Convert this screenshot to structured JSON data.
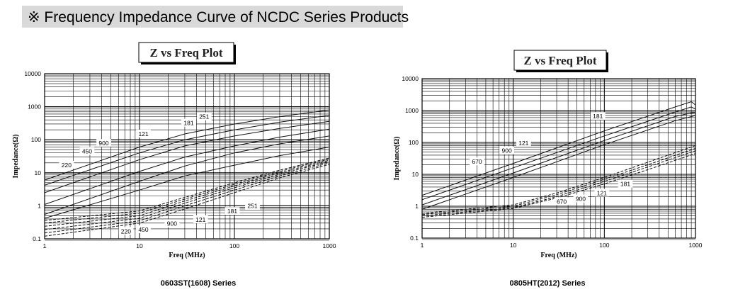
{
  "header": {
    "title": "※ Frequency Impedance Curve of NCDC Series Products"
  },
  "chart_data": [
    {
      "type": "line",
      "title": "Z vs Freq Plot",
      "caption": "0603ST(1608) Series",
      "xlabel": "Freq (MHz)",
      "ylabel": "Impedance(Ω)",
      "xscale": "log",
      "yscale": "log",
      "xlim": [
        1,
        1000
      ],
      "ylim": [
        0.1,
        10000
      ],
      "x_ticks": [
        "1",
        "10",
        "100",
        "1000"
      ],
      "y_ticks": [
        "0.1",
        "1",
        "10",
        "100",
        "1000",
        "10000"
      ],
      "grid": true,
      "series": [
        {
          "name": "251",
          "kind": "Z",
          "points": [
            [
              1,
              6
            ],
            [
              10,
              60
            ],
            [
              30,
              150
            ],
            [
              100,
              300
            ],
            [
              300,
              500
            ],
            [
              1000,
              800
            ]
          ]
        },
        {
          "name": "181",
          "kind": "Z",
          "points": [
            [
              1,
              4.2
            ],
            [
              10,
              40
            ],
            [
              30,
              100
            ],
            [
              100,
              200
            ],
            [
              300,
              340
            ],
            [
              1000,
              550
            ]
          ]
        },
        {
          "name": "121",
          "kind": "Z",
          "points": [
            [
              1,
              2.5
            ],
            [
              10,
              25
            ],
            [
              30,
              65
            ],
            [
              100,
              130
            ],
            [
              300,
              220
            ],
            [
              1000,
              360
            ]
          ]
        },
        {
          "name": "900",
          "kind": "Z",
          "points": [
            [
              1,
              1.1
            ],
            [
              10,
              11
            ],
            [
              30,
              30
            ],
            [
              100,
              65
            ],
            [
              300,
              120
            ],
            [
              1000,
              210
            ]
          ]
        },
        {
          "name": "450",
          "kind": "Z",
          "points": [
            [
              1,
              0.55
            ],
            [
              10,
              5.5
            ],
            [
              30,
              16
            ],
            [
              100,
              40
            ],
            [
              300,
              75
            ],
            [
              1000,
              130
            ]
          ]
        },
        {
          "name": "220",
          "kind": "Z",
          "points": [
            [
              1,
              0.42
            ],
            [
              10,
              3
            ],
            [
              30,
              8
            ],
            [
              100,
              17
            ],
            [
              300,
              33
            ],
            [
              1000,
              60
            ]
          ]
        },
        {
          "name": "220",
          "kind": "R",
          "points": [
            [
              1,
              0.12
            ],
            [
              10,
              0.3
            ],
            [
              30,
              0.8
            ],
            [
              100,
              2.5
            ],
            [
              300,
              7
            ],
            [
              1000,
              18
            ]
          ]
        },
        {
          "name": "450",
          "kind": "R",
          "points": [
            [
              1,
              0.15
            ],
            [
              10,
              0.35
            ],
            [
              30,
              1.0
            ],
            [
              100,
              3.0
            ],
            [
              300,
              8
            ],
            [
              1000,
              20
            ]
          ]
        },
        {
          "name": "900",
          "kind": "R",
          "points": [
            [
              1,
              0.19
            ],
            [
              10,
              0.42
            ],
            [
              30,
              1.2
            ],
            [
              100,
              3.5
            ],
            [
              300,
              9
            ],
            [
              1000,
              22
            ]
          ]
        },
        {
          "name": "121",
          "kind": "R",
          "points": [
            [
              1,
              0.24
            ],
            [
              10,
              0.5
            ],
            [
              30,
              1.4
            ],
            [
              100,
              4.0
            ],
            [
              300,
              10
            ],
            [
              1000,
              24
            ]
          ]
        },
        {
          "name": "181",
          "kind": "R",
          "points": [
            [
              1,
              0.3
            ],
            [
              10,
              0.6
            ],
            [
              30,
              1.6
            ],
            [
              100,
              4.5
            ],
            [
              300,
              11
            ],
            [
              1000,
              26
            ]
          ]
        },
        {
          "name": "251",
          "kind": "R",
          "points": [
            [
              1,
              0.36
            ],
            [
              10,
              0.7
            ],
            [
              30,
              1.8
            ],
            [
              100,
              5.0
            ],
            [
              300,
              12
            ],
            [
              1000,
              28
            ]
          ]
        }
      ],
      "labels": [
        {
          "text": "251",
          "at": [
            48,
            500
          ]
        },
        {
          "text": "181",
          "at": [
            33,
            320
          ]
        },
        {
          "text": "121",
          "at": [
            11,
            150
          ]
        },
        {
          "text": "900",
          "at": [
            4.2,
            78
          ]
        },
        {
          "text": "450",
          "at": [
            2.8,
            45
          ]
        },
        {
          "text": "220",
          "at": [
            1.7,
            17
          ]
        },
        {
          "text": "251",
          "at": [
            155,
            1.0
          ]
        },
        {
          "text": "181",
          "at": [
            95,
            0.68
          ]
        },
        {
          "text": "121",
          "at": [
            44,
            0.38
          ]
        },
        {
          "text": "900",
          "at": [
            22,
            0.29
          ]
        },
        {
          "text": "450",
          "at": [
            11,
            0.19
          ]
        },
        {
          "text": "220",
          "at": [
            7.2,
            0.17
          ]
        }
      ]
    },
    {
      "type": "line",
      "title": "Z vs Freq Plot",
      "caption": "0805HT(2012) Series",
      "xlabel": "Freq (MHz)",
      "ylabel": "Impedance(Ω)",
      "xscale": "log",
      "yscale": "log",
      "xlim": [
        1,
        1000
      ],
      "ylim": [
        0.1,
        10000
      ],
      "x_ticks": [
        "1",
        "10",
        "100",
        "1000"
      ],
      "y_ticks": [
        "0.1",
        "1",
        "10",
        "100",
        "1000",
        "10000"
      ],
      "grid": true,
      "series": [
        {
          "name": "181",
          "kind": "Z",
          "points": [
            [
              1,
              2.2
            ],
            [
              10,
              22
            ],
            [
              100,
              230
            ],
            [
              600,
              1300
            ],
            [
              900,
              1900
            ],
            [
              1000,
              1500
            ]
          ]
        },
        {
          "name": "121",
          "kind": "Z",
          "points": [
            [
              1,
              1.6
            ],
            [
              10,
              16
            ],
            [
              100,
              160
            ],
            [
              600,
              900
            ],
            [
              900,
              1300
            ],
            [
              1000,
              1100
            ]
          ]
        },
        {
          "name": "900",
          "kind": "Z",
          "points": [
            [
              1,
              1.1
            ],
            [
              10,
              11
            ],
            [
              100,
              115
            ],
            [
              600,
              650
            ],
            [
              1000,
              900
            ]
          ]
        },
        {
          "name": "670",
          "kind": "Z",
          "points": [
            [
              1,
              0.8
            ],
            [
              10,
              8
            ],
            [
              100,
              85
            ],
            [
              600,
              480
            ],
            [
              1000,
              700
            ]
          ]
        },
        {
          "name": "670",
          "kind": "R",
          "points": [
            [
              1,
              0.45
            ],
            [
              10,
              0.85
            ],
            [
              30,
              1.8
            ],
            [
              100,
              5
            ],
            [
              300,
              14
            ],
            [
              1000,
              45
            ]
          ]
        },
        {
          "name": "900",
          "kind": "R",
          "points": [
            [
              1,
              0.5
            ],
            [
              10,
              0.9
            ],
            [
              30,
              2.0
            ],
            [
              100,
              6
            ],
            [
              300,
              17
            ],
            [
              1000,
              55
            ]
          ]
        },
        {
          "name": "121",
          "kind": "R",
          "points": [
            [
              1,
              0.55
            ],
            [
              10,
              1.0
            ],
            [
              30,
              2.3
            ],
            [
              100,
              7
            ],
            [
              300,
              20
            ],
            [
              1000,
              65
            ]
          ]
        },
        {
          "name": "181",
          "kind": "R",
          "points": [
            [
              1,
              0.6
            ],
            [
              10,
              1.1
            ],
            [
              30,
              2.6
            ],
            [
              100,
              8
            ],
            [
              300,
              24
            ],
            [
              1000,
              80
            ]
          ]
        }
      ],
      "labels": [
        {
          "text": "181",
          "at": [
            85,
            660
          ]
        },
        {
          "text": "121",
          "at": [
            13,
            95
          ]
        },
        {
          "text": "900",
          "at": [
            8.5,
            55
          ]
        },
        {
          "text": "670",
          "at": [
            4.0,
            25
          ]
        },
        {
          "text": "181",
          "at": [
            170,
            5
          ]
        },
        {
          "text": "121",
          "at": [
            94,
            2.6
          ]
        },
        {
          "text": "900",
          "at": [
            55,
            1.7
          ]
        },
        {
          "text": "670",
          "at": [
            34,
            1.4
          ]
        }
      ]
    }
  ]
}
